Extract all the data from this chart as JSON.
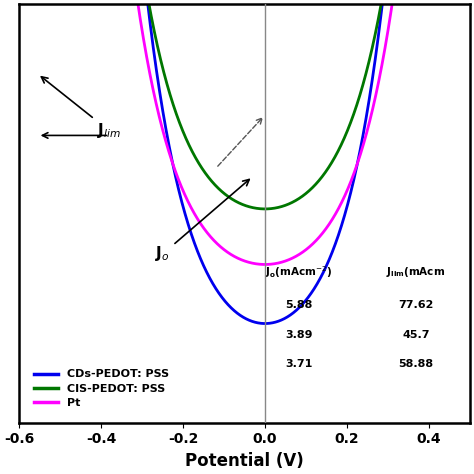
{
  "xlim": [
    -0.6,
    0.5
  ],
  "ylim": [
    -90,
    12
  ],
  "xlabel": "Potential (V)",
  "xlabel_fontsize": 12,
  "tick_fontsize": 10,
  "background_color": "#ffffff",
  "curves": [
    {
      "label": "CDs-PEDOT: PSS",
      "color": "#0000ee",
      "J0": 5.88,
      "Jlim": 77.62,
      "f": 19.0
    },
    {
      "label": "CIS-PEDOT: PSS",
      "color": "#007700",
      "J0": 3.89,
      "Jlim": 45.7,
      "f": 19.0
    },
    {
      "label": "Pt",
      "color": "#ff00ff",
      "J0": 3.71,
      "Jlim": 58.88,
      "f": 19.0
    }
  ],
  "xticks": [
    -0.6,
    -0.4,
    -0.2,
    0.0,
    0.2,
    0.4
  ],
  "annotation_Jlim_text": "J$_{lim}$",
  "annotation_Jo_text": "J$_o$",
  "vertical_line_x": 0.0
}
